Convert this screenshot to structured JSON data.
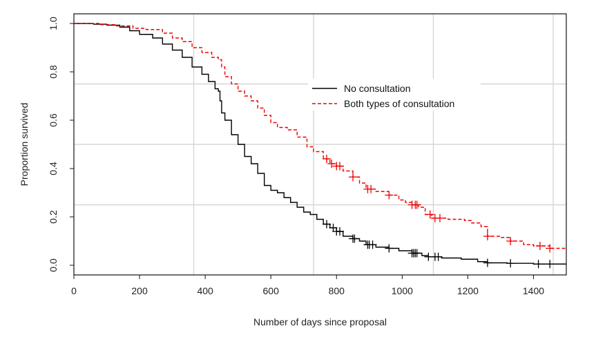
{
  "chart_data": {
    "type": "line",
    "title": "",
    "xlabel": "Number of days since proposal",
    "ylabel": "Proportion survived",
    "xlim": [
      0,
      1500
    ],
    "ylim": [
      -0.04,
      1.04
    ],
    "x_ticks": [
      0,
      200,
      400,
      600,
      800,
      1000,
      1200,
      1400
    ],
    "y_ticks": [
      0.0,
      0.2,
      0.4,
      0.6,
      0.8,
      1.0
    ],
    "x_tick_labels": [
      "0",
      "200",
      "400",
      "600",
      "800",
      "1000",
      "1200",
      "1400"
    ],
    "y_tick_labels": [
      "0.0",
      "0.2",
      "0.4",
      "0.6",
      "0.8",
      "1.0"
    ],
    "grid_x": [
      365,
      730,
      1095,
      1460
    ],
    "grid_y": [
      0.25,
      0.5,
      0.75
    ],
    "grid": true,
    "step_curve": true,
    "legend_position": "center-right",
    "series": [
      {
        "name": "No consultation",
        "color": "#000000",
        "line_style": "solid",
        "points": [
          [
            0,
            1.0
          ],
          [
            60,
            0.997
          ],
          [
            100,
            0.993
          ],
          [
            140,
            0.985
          ],
          [
            170,
            0.97
          ],
          [
            200,
            0.955
          ],
          [
            240,
            0.94
          ],
          [
            270,
            0.915
          ],
          [
            300,
            0.89
          ],
          [
            330,
            0.86
          ],
          [
            360,
            0.82
          ],
          [
            390,
            0.79
          ],
          [
            410,
            0.76
          ],
          [
            430,
            0.73
          ],
          [
            440,
            0.72
          ],
          [
            445,
            0.68
          ],
          [
            450,
            0.63
          ],
          [
            460,
            0.6
          ],
          [
            480,
            0.54
          ],
          [
            500,
            0.5
          ],
          [
            520,
            0.45
          ],
          [
            540,
            0.42
          ],
          [
            560,
            0.38
          ],
          [
            580,
            0.33
          ],
          [
            600,
            0.31
          ],
          [
            620,
            0.3
          ],
          [
            640,
            0.28
          ],
          [
            660,
            0.26
          ],
          [
            680,
            0.24
          ],
          [
            700,
            0.22
          ],
          [
            720,
            0.21
          ],
          [
            740,
            0.19
          ],
          [
            760,
            0.17
          ],
          [
            780,
            0.155
          ],
          [
            800,
            0.14
          ],
          [
            820,
            0.12
          ],
          [
            850,
            0.11
          ],
          [
            870,
            0.1
          ],
          [
            890,
            0.085
          ],
          [
            920,
            0.075
          ],
          [
            960,
            0.07
          ],
          [
            990,
            0.06
          ],
          [
            1030,
            0.05
          ],
          [
            1060,
            0.04
          ],
          [
            1080,
            0.035
          ],
          [
            1120,
            0.03
          ],
          [
            1180,
            0.025
          ],
          [
            1230,
            0.015
          ],
          [
            1260,
            0.01
          ],
          [
            1320,
            0.008
          ],
          [
            1400,
            0.005
          ],
          [
            1500,
            0.005
          ]
        ],
        "censor_x": [
          770,
          790,
          800,
          810,
          850,
          855,
          895,
          900,
          910,
          960,
          1030,
          1035,
          1040,
          1045,
          1080,
          1100,
          1110,
          1260,
          1330,
          1415,
          1450
        ]
      },
      {
        "name": "Both types of consultation",
        "color": "#ee0000",
        "line_style": "dashed",
        "points": [
          [
            0,
            1.0
          ],
          [
            80,
            0.995
          ],
          [
            130,
            0.99
          ],
          [
            180,
            0.98
          ],
          [
            220,
            0.975
          ],
          [
            270,
            0.96
          ],
          [
            300,
            0.94
          ],
          [
            330,
            0.925
          ],
          [
            360,
            0.9
          ],
          [
            390,
            0.88
          ],
          [
            420,
            0.86
          ],
          [
            440,
            0.85
          ],
          [
            450,
            0.82
          ],
          [
            460,
            0.78
          ],
          [
            480,
            0.75
          ],
          [
            500,
            0.72
          ],
          [
            520,
            0.7
          ],
          [
            540,
            0.68
          ],
          [
            560,
            0.65
          ],
          [
            580,
            0.62
          ],
          [
            600,
            0.59
          ],
          [
            620,
            0.57
          ],
          [
            650,
            0.56
          ],
          [
            680,
            0.53
          ],
          [
            710,
            0.49
          ],
          [
            730,
            0.47
          ],
          [
            760,
            0.44
          ],
          [
            780,
            0.42
          ],
          [
            800,
            0.41
          ],
          [
            820,
            0.39
          ],
          [
            850,
            0.365
          ],
          [
            870,
            0.34
          ],
          [
            890,
            0.315
          ],
          [
            920,
            0.305
          ],
          [
            960,
            0.29
          ],
          [
            990,
            0.27
          ],
          [
            1010,
            0.26
          ],
          [
            1030,
            0.25
          ],
          [
            1050,
            0.24
          ],
          [
            1070,
            0.21
          ],
          [
            1090,
            0.195
          ],
          [
            1140,
            0.19
          ],
          [
            1190,
            0.185
          ],
          [
            1210,
            0.175
          ],
          [
            1240,
            0.16
          ],
          [
            1260,
            0.12
          ],
          [
            1300,
            0.115
          ],
          [
            1330,
            0.1
          ],
          [
            1370,
            0.085
          ],
          [
            1400,
            0.08
          ],
          [
            1450,
            0.07
          ],
          [
            1500,
            0.065
          ]
        ],
        "censor_x": [
          770,
          785,
          800,
          810,
          850,
          895,
          905,
          960,
          1030,
          1040,
          1045,
          1085,
          1100,
          1115,
          1260,
          1330,
          1420,
          1450
        ]
      }
    ]
  }
}
